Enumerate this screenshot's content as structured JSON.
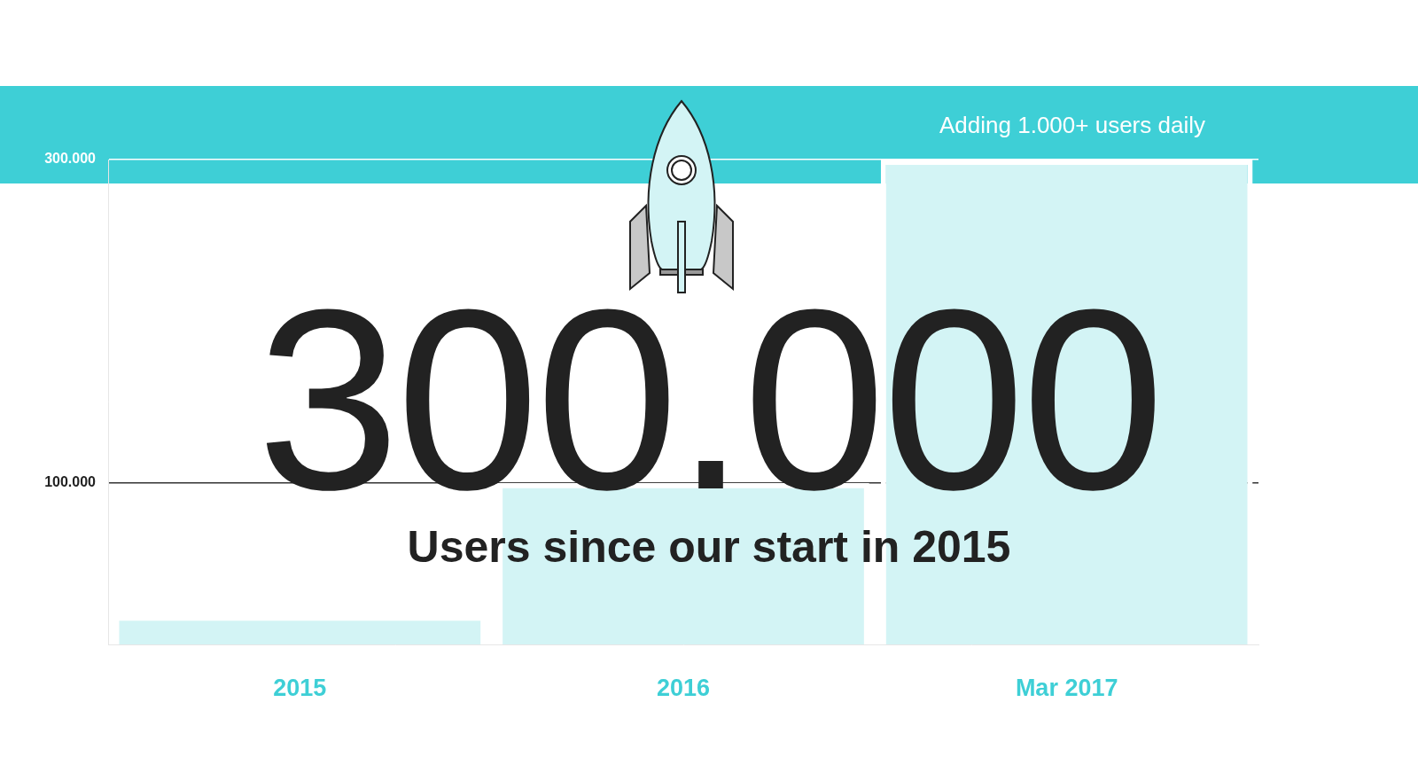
{
  "chart_data": {
    "type": "bar",
    "title": "300.000",
    "subtitle": "Users since our start in 2015",
    "annotation": "Adding 1.000+ users daily",
    "categories": [
      "2015",
      "2016",
      "Mar 2017"
    ],
    "values": [
      18000,
      100000,
      300000
    ],
    "color": "#d3f4f5",
    "ylim": [
      0,
      300000
    ],
    "yticks": [
      {
        "value": 100000,
        "label": "100.000"
      },
      {
        "value": 300000,
        "label": "300.000"
      }
    ],
    "grid": true
  }
}
